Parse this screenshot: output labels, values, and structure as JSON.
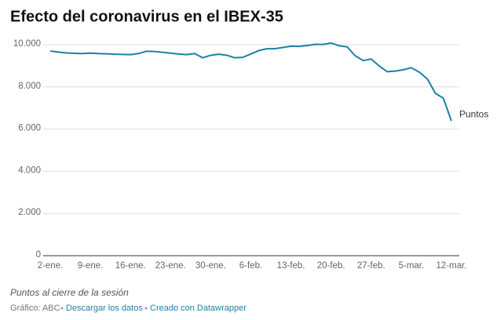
{
  "chart_data": {
    "type": "line",
    "title": "Efecto del coronavirus en el IBEX-35",
    "categories": [
      "2-ene.",
      null,
      null,
      null,
      null,
      "9-ene.",
      null,
      null,
      null,
      null,
      "16-ene.",
      null,
      null,
      null,
      null,
      "23-ene.",
      null,
      null,
      null,
      null,
      "30-ene.",
      null,
      null,
      null,
      null,
      "6-feb.",
      null,
      null,
      null,
      null,
      "13-feb.",
      null,
      null,
      null,
      null,
      "20-feb.",
      null,
      null,
      null,
      null,
      "27-feb.",
      null,
      null,
      null,
      null,
      "5-mar.",
      null,
      null,
      null,
      null,
      "12-mar."
    ],
    "series": [
      {
        "name": "Puntos",
        "color": "#1d81a2",
        "values": [
          9700,
          9650,
          9610,
          9590,
          9580,
          9600,
          9580,
          9570,
          9550,
          9540,
          9530,
          9580,
          9690,
          9680,
          9640,
          9600,
          9560,
          9530,
          9580,
          9380,
          9500,
          9550,
          9500,
          9380,
          9400,
          9560,
          9720,
          9810,
          9810,
          9870,
          9930,
          9920,
          9960,
          10020,
          10010,
          10080,
          9950,
          9900,
          9480,
          9250,
          9320,
          8990,
          8720,
          8750,
          8810,
          8910,
          8700,
          8380,
          7700,
          7460,
          6390
        ]
      }
    ],
    "ylim": [
      0,
      10000
    ],
    "yticks": [
      0,
      {
        "value": 2000,
        "label": "2.000"
      },
      {
        "value": 4000,
        "label": "4.000"
      },
      {
        "value": 6000,
        "label": "6.000"
      },
      {
        "value": 8000,
        "label": "8.000"
      },
      {
        "value": 10000,
        "label": "10.000"
      }
    ],
    "grid": true,
    "notes": "Puntos al cierre de la sesión",
    "footer": {
      "source": "Gráfico: ABC",
      "links": [
        "Descargar los datos",
        "Creado con Datawrapper"
      ]
    }
  }
}
